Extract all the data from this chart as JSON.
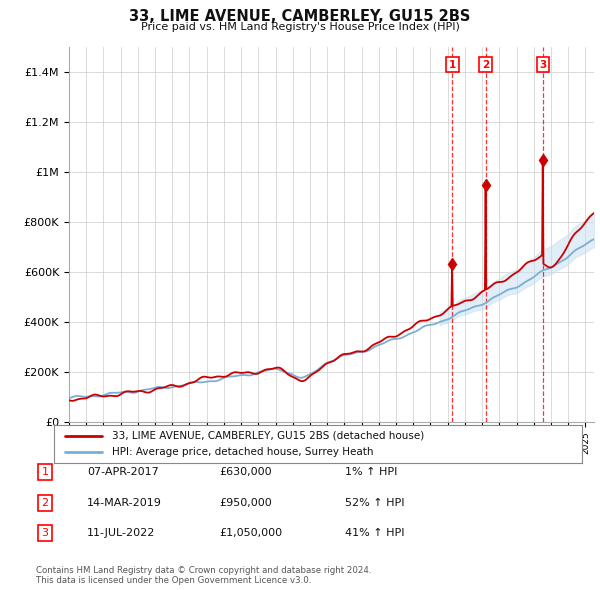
{
  "title": "33, LIME AVENUE, CAMBERLEY, GU15 2BS",
  "subtitle": "Price paid vs. HM Land Registry's House Price Index (HPI)",
  "ylim": [
    0,
    1500000
  ],
  "yticks": [
    0,
    200000,
    400000,
    600000,
    800000,
    1000000,
    1200000,
    1400000
  ],
  "ytick_labels": [
    "£0",
    "£200K",
    "£400K",
    "£600K",
    "£800K",
    "£1M",
    "£1.2M",
    "£1.4M"
  ],
  "xmin": 1995,
  "xmax": 2025,
  "sale_dates": [
    2017.27,
    2019.2,
    2022.53
  ],
  "sale_prices": [
    630000,
    950000,
    1050000
  ],
  "sale_labels": [
    "1",
    "2",
    "3"
  ],
  "legend_line1": "33, LIME AVENUE, CAMBERLEY, GU15 2BS (detached house)",
  "legend_line1_color": "#cc0000",
  "legend_line2": "HPI: Average price, detached house, Surrey Heath",
  "legend_line2_color": "#7aafd4",
  "table_data": [
    {
      "num": "1",
      "date": "07-APR-2017",
      "price": "£630,000",
      "hpi": "1% ↑ HPI"
    },
    {
      "num": "2",
      "date": "14-MAR-2019",
      "price": "£950,000",
      "hpi": "52% ↑ HPI"
    },
    {
      "num": "3",
      "date": "11-JUL-2022",
      "price": "£1,050,000",
      "hpi": "41% ↑ HPI"
    }
  ],
  "footnote1": "Contains HM Land Registry data © Crown copyright and database right 2024.",
  "footnote2": "This data is licensed under the Open Government Licence v3.0.",
  "background_color": "#ffffff",
  "grid_color": "#cccccc",
  "hpi_band_color": "#c5dff0"
}
